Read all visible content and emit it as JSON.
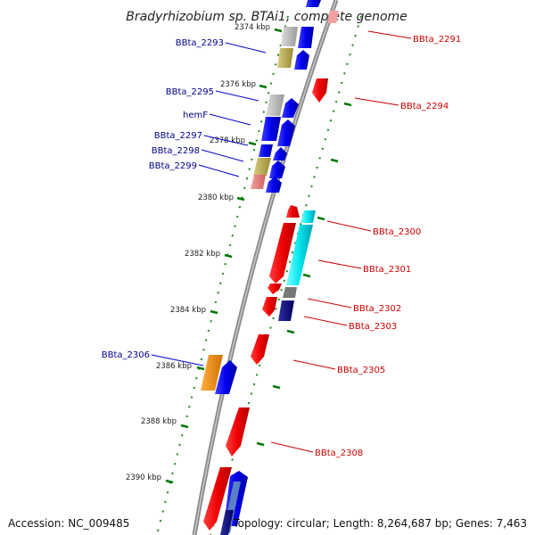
{
  "title": "Bradyrhizobium sp. BTAi1, complete genome",
  "accession": "Accession: NC_009485",
  "topology": "Topology: circular; Length: 8,264,687 bp; Genes: 7,463",
  "kbp_ticks": [
    "2374 kbp",
    "2376 kbp",
    "2378 kbp",
    "2380 kbp",
    "2382 kbp",
    "2384 kbp",
    "2386 kbp",
    "2388 kbp",
    "2390 kbp"
  ],
  "left_labels": [
    "BBta_2293",
    "BBta_2295",
    "hemF",
    "BBta_2297",
    "BBta_2298",
    "BBta_2299",
    "BBta_2306"
  ],
  "right_labels": [
    "BBta_2291",
    "BBta_2294",
    "BBta_2300",
    "BBta_2301",
    "BBta_2302",
    "BBta_2303",
    "BBta_2305",
    "BBta_2308"
  ],
  "colors": {
    "forward_gene": "#ee0000",
    "reverse_gene": "#0000ee",
    "rrna_like": "#00e5ee",
    "orange_gene": "#ff8c00",
    "pseudo_gray": "#aaaaaa",
    "olive_gene": "#b5a642",
    "dark_navy": "#000080",
    "backbone": "#888888",
    "tick_green": "#007700"
  }
}
